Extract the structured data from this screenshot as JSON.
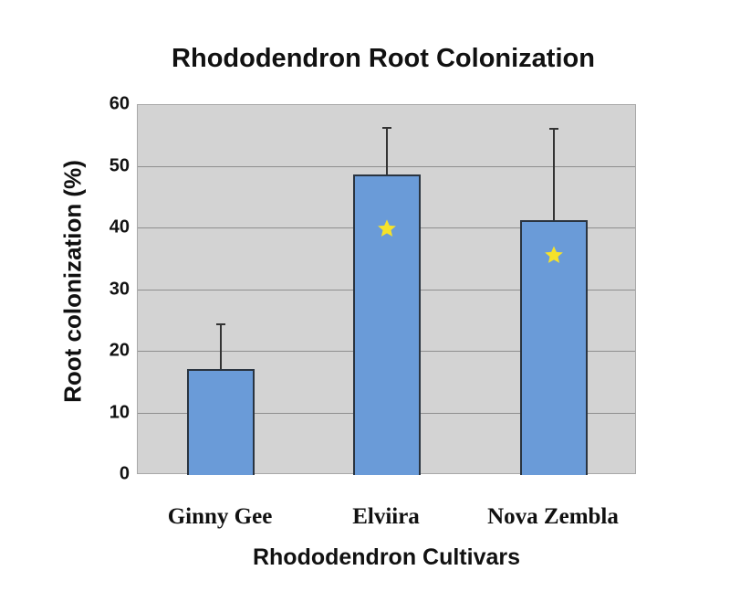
{
  "chart_data": {
    "type": "bar",
    "title": "Rhododendron Root Colonization",
    "xlabel": "Rhododendron Cultivars",
    "ylabel": "Root colonization (%)",
    "ylim": [
      0,
      60
    ],
    "yticks": [
      0,
      10,
      20,
      30,
      40,
      50,
      60
    ],
    "grid": true,
    "legend": null,
    "categories": [
      "Ginny Gee",
      "Elviira",
      "Nova Zembla"
    ],
    "values": [
      17.2,
      48.7,
      41.3
    ],
    "error_upper": [
      24.4,
      56.3,
      56.1
    ],
    "error_plus": [
      7.2,
      7.6,
      14.8
    ],
    "significance_markers": [
      false,
      true,
      true
    ],
    "marker_symbol": "star",
    "colors": {
      "bar": "#6a9bd8",
      "bar_edge": "#2a3440",
      "plot_bg": "#d3d3d3",
      "gridline": "#8f8f8f",
      "star": "#f5e22a"
    }
  },
  "labels": {
    "title": "Rhododendron Root Colonization",
    "ylabel": "Root colonization (%)",
    "xlabel": "Rhododendron Cultivars",
    "ticks": [
      "0",
      "10",
      "20",
      "30",
      "40",
      "50",
      "60"
    ],
    "categories": [
      "Ginny Gee",
      "Elviira",
      "Nova Zembla"
    ]
  }
}
